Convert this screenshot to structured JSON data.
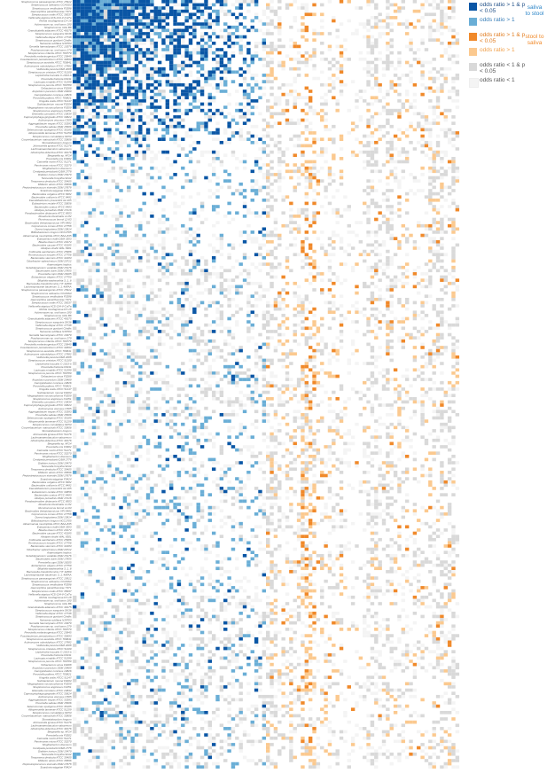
{
  "chart_data": {
    "type": "heatmap",
    "title": "",
    "xlabel": "",
    "ylabel": "",
    "n_rows": 240,
    "n_cols": 100,
    "saliva_to_stool_cols": [
      0,
      50
    ],
    "stool_to_saliva_cols": [
      50,
      100
    ],
    "legend": [
      {
        "key": "s2s_sig",
        "label": "odds ratio > 1 & p < 0.05",
        "color": "#0a56a5"
      },
      {
        "key": "s2s_or",
        "label": "odds ratio > 1",
        "color": "#6aaed6"
      },
      {
        "key": "t2s_sig",
        "label": "odds ratio > 1 & p < 0.05",
        "color": "#f0892a"
      },
      {
        "key": "t2s_or",
        "label": "odds ratio > 1",
        "color": "#fbc98f"
      },
      {
        "key": "lt_sig",
        "label": "odds ratio < 1 & p < 0.05",
        "color": "#d9d9d9"
      },
      {
        "key": "lt",
        "label": "odds ratio < 1",
        "color": "#f4f4f4"
      }
    ],
    "groups": [
      {
        "label": "saliva to stool",
        "color": "#2e86c8"
      },
      {
        "label": "stool to saliva",
        "color": "#f0892a"
      }
    ],
    "row_labels": [
      "Streptococcus parasanguinis ATCC 15912",
      "Streptococcus salivarius CCHSS3",
      "Streptococcus vestibularis F0396",
      "Haemophilus parainfluenzae T3T1",
      "Streptococcus oralis ATCC 35037",
      "Veillonella atypica ACS-134-V-Col7a",
      "Rothia mucilaginosa DY-18",
      "Actinomyces sp. oral taxon 180",
      "Streptococcus mitis B6",
      "Granulicatella adiacens ATCC 49175",
      "Streptococcus sanguinis SK36",
      "Veillonella dispar ATCC 17748",
      "Streptococcus gordonii Challis",
      "Neisseria subflava NJ9703",
      "Gemella haemolysans ATCC 10379",
      "Porphyromonas sp. oral taxon 279",
      "Streptococcus infantis ATCC 700779",
      "Prevotella melaninogenica ATCC 25845",
      "Fusobacterium periodonticum ATCC 33693",
      "Streptococcus australis ATCC 700641",
      "Actinomyces odontolyticus ATCC 17982",
      "Veillonella parvula DSM 2008",
      "Streptococcus cristatus ATCC 51100",
      "Leptotrichia buccalis C-1013-b",
      "Prevotella histicola F0411",
      "Lautropia mirabilis ATCC 51599",
      "Streptococcus peroris ATCC 700780",
      "Oribacterium sinus F0268",
      "Atopobium parvulum DSM 20469",
      "Campylobacter concisus 13826",
      "Prevotella pallens ATCC 700821",
      "Kingella oralis ATCC 51147",
      "Solobacterium moorei F0204",
      "Megasphaera micronuciformis F0359",
      "Streptococcus anginosus C1051",
      "Eikenella corrodens ATCC 23834",
      "Capnocytophaga gingivalis ATCC 33624",
      "Actinomyces viscosus C505",
      "Aggregatibacter segnis ATCC 33393",
      "Prevotella salivae DSM 15606",
      "Selenomonas sputigena ATCC 35185",
      "Alloprevotella tannerae ATCC 51259",
      "Streptococcus constellatus SK53",
      "Corynebacterium matruchotii ATCC 33806",
      "Stomatobaculum longum",
      "Johnsonella ignava ATCC 51276",
      "Lachnoanaerobaculum saburreum",
      "Abiotrophia defectiva ATCC 49176",
      "Bergeyella sp. AF14",
      "Prevotella oris F0302",
      "Catonella morbi ATCC 51271",
      "Parvimonas micra ATCC 33270",
      "Mogibacterium diversum",
      "Centipeda periodontii DSM 2778",
      "Dialister invisus DSM 15470",
      "Tannerella forsythia 92A2",
      "Treponema denticola ATCC 35405",
      "Filifactor alocis ATCC 35896",
      "Peptostreptococcus stomatis DSM 17678",
      "Scardovia wiggsiae F0424",
      "Bacteroides vulgatus ATCC 8482",
      "Bacteroides uniformis ATCC 8492",
      "Faecalibacterium prausnitzii A2-165",
      "Eubacterium rectale ATCC 33656",
      "Bacteroides ovatus ATCC 8483",
      "Alistipes putredinis DSM 17216",
      "Parabacteroides distasonis ATCC 8503",
      "Roseburia intestinalis L1-82",
      "Ruminococcus bromii L2-63",
      "Bacteroides thetaiotaomicron VPI-5482",
      "Coprococcus comes ATCC 27758",
      "Dorea longicatena DSM 13814",
      "Bifidobacterium longum NCC2705",
      "Akkermansia muciniphila ATCC BAA-835",
      "Eubacterium hallii DSM 3353",
      "Blautia obeum ATCC 29174",
      "Bacteroides caccae ATCC 43185",
      "Alistipes shahii WAL 8301",
      "Collinsella aerofaciens ATCC 25986",
      "Ruminococcus torques ATCC 27756",
      "Bacteroides stercoris ATCC 43183",
      "Odoribacter splanchnicus DSM 20712",
      "Anaerostipes hadrus",
      "Subdoligranulum variabile DSM 15176",
      "Bacteroides dorei DSM 17855",
      "Prevotella copri DSM 18205",
      "Eubacterium eligens ATCC 27750",
      "Bilophila wadsworthia 3_1_6",
      "Barnesiella intestinihominis YIT 11860",
      "Lachnospiraceae bacterium 3_1_46FAA",
      "Streptococcus parasanguinis ATCC 15912",
      "Streptococcus salivarius CCHSS3",
      "Streptococcus vestibularis F0396",
      "Haemophilus parainfluenzae T3T1",
      "Streptococcus oralis ATCC 35037",
      "Veillonella atypica ACS-134-V-Col7a",
      "Rothia mucilaginosa DY-18",
      "Actinomyces sp. oral taxon 180",
      "Streptococcus mitis B6",
      "Granulicatella adiacens ATCC 49175",
      "Streptococcus sanguinis SK36",
      "Veillonella dispar ATCC 17748",
      "Streptococcus gordonii Challis",
      "Neisseria subflava NJ9703",
      "Gemella haemolysans ATCC 10379",
      "Porphyromonas sp. oral taxon 279",
      "Streptococcus infantis ATCC 700779",
      "Prevotella melaninogenica ATCC 25845",
      "Fusobacterium periodonticum ATCC 33693",
      "Streptococcus australis ATCC 700641",
      "Actinomyces odontolyticus ATCC 17982",
      "Veillonella parvula DSM 2008",
      "Streptococcus cristatus ATCC 51100",
      "Leptotrichia buccalis C-1013-b",
      "Prevotella histicola F0411",
      "Lautropia mirabilis ATCC 51599",
      "Streptococcus peroris ATCC 700780",
      "Oribacterium sinus F0268",
      "Atopobium parvulum DSM 20469",
      "Campylobacter concisus 13826",
      "Prevotella pallens ATCC 700821",
      "Kingella oralis ATCC 51147",
      "Solobacterium moorei F0204",
      "Megasphaera micronuciformis F0359",
      "Streptococcus anginosus C1051",
      "Eikenella corrodens ATCC 23834",
      "Capnocytophaga gingivalis ATCC 33624",
      "Actinomyces viscosus C505",
      "Aggregatibacter segnis ATCC 33393",
      "Prevotella salivae DSM 15606",
      "Selenomonas sputigena ATCC 35185",
      "Alloprevotella tannerae ATCC 51259",
      "Streptococcus constellatus SK53",
      "Corynebacterium matruchotii ATCC 33806",
      "Stomatobaculum longum",
      "Johnsonella ignava ATCC 51276",
      "Lachnoanaerobaculum saburreum",
      "Abiotrophia defectiva ATCC 49176",
      "Bergeyella sp. AF14",
      "Prevotella oris F0302",
      "Catonella morbi ATCC 51271",
      "Parvimonas micra ATCC 33270",
      "Mogibacterium diversum",
      "Centipeda periodontii DSM 2778",
      "Dialister invisus DSM 15470",
      "Tannerella forsythia 92A2",
      "Treponema denticola ATCC 35405",
      "Filifactor alocis ATCC 35896",
      "Peptostreptococcus stomatis DSM 17678",
      "Scardovia wiggsiae F0424",
      "Bacteroides vulgatus ATCC 8482",
      "Bacteroides uniformis ATCC 8492",
      "Faecalibacterium prausnitzii A2-165",
      "Eubacterium rectale ATCC 33656",
      "Bacteroides ovatus ATCC 8483",
      "Alistipes putredinis DSM 17216",
      "Parabacteroides distasonis ATCC 8503",
      "Roseburia intestinalis L1-82",
      "Ruminococcus bromii L2-63",
      "Bacteroides thetaiotaomicron VPI-5482",
      "Coprococcus comes ATCC 27758",
      "Dorea longicatena DSM 13814",
      "Bifidobacterium longum NCC2705",
      "Akkermansia muciniphila ATCC BAA-835",
      "Eubacterium hallii DSM 3353",
      "Blautia obeum ATCC 29174",
      "Bacteroides caccae ATCC 43185",
      "Alistipes shahii WAL 8301",
      "Collinsella aerofaciens ATCC 25986",
      "Ruminococcus torques ATCC 27756",
      "Bacteroides stercoris ATCC 43183",
      "Odoribacter splanchnicus DSM 20712",
      "Anaerostipes hadrus",
      "Subdoligranulum variabile DSM 15176",
      "Bacteroides dorei DSM 17855",
      "Prevotella copri DSM 18205",
      "Eubacterium eligens ATCC 27750",
      "Bilophila wadsworthia 3_1_6",
      "Barnesiella intestinihominis YIT 11860",
      "Lachnospiraceae bacterium 3_1_46FAA",
      "Streptococcus parasanguinis ATCC 15912",
      "Streptococcus salivarius CCHSS3",
      "Streptococcus vestibularis F0396",
      "Haemophilus parainfluenzae T3T1",
      "Streptococcus oralis ATCC 35037",
      "Veillonella atypica ACS-134-V-Col7a",
      "Rothia mucilaginosa DY-18",
      "Actinomyces sp. oral taxon 180",
      "Streptococcus mitis B6",
      "Granulicatella adiacens ATCC 49175",
      "Streptococcus sanguinis SK36",
      "Veillonella dispar ATCC 17748",
      "Streptococcus gordonii Challis",
      "Neisseria subflava NJ9703",
      "Gemella haemolysans ATCC 10379",
      "Porphyromonas sp. oral taxon 279",
      "Streptococcus infantis ATCC 700779",
      "Prevotella melaninogenica ATCC 25845",
      "Fusobacterium periodonticum ATCC 33693",
      "Streptococcus australis ATCC 700641",
      "Actinomyces odontolyticus ATCC 17982",
      "Veillonella parvula DSM 2008",
      "Streptococcus cristatus ATCC 51100",
      "Leptotrichia buccalis C-1013-b",
      "Prevotella histicola F0411",
      "Lautropia mirabilis ATCC 51599",
      "Streptococcus peroris ATCC 700780",
      "Oribacterium sinus F0268",
      "Atopobium parvulum DSM 20469",
      "Campylobacter concisus 13826",
      "Prevotella pallens ATCC 700821",
      "Kingella oralis ATCC 51147",
      "Solobacterium moorei F0204",
      "Megasphaera micronuciformis F0359",
      "Streptococcus anginosus C1051",
      "Eikenella corrodens ATCC 23834",
      "Capnocytophaga gingivalis ATCC 33624",
      "Actinomyces viscosus C505",
      "Aggregatibacter segnis ATCC 33393",
      "Prevotella salivae DSM 15606",
      "Selenomonas sputigena ATCC 35185",
      "Alloprevotella tannerae ATCC 51259",
      "Streptococcus constellatus SK53",
      "Corynebacterium matruchotii ATCC 33806",
      "Stomatobaculum longum",
      "Johnsonella ignava ATCC 51276",
      "Lachnoanaerobaculum saburreum",
      "Abiotrophia defectiva ATCC 49176",
      "Bergeyella sp. AF14",
      "Prevotella oris F0302",
      "Catonella morbi ATCC 51271",
      "Parvimonas micra ATCC 33270",
      "Mogibacterium diversum",
      "Centipeda periodontii DSM 2778",
      "Dialister invisus DSM 15470",
      "Tannerella forsythia 92A2",
      "Treponema denticola ATCC 35405",
      "Filifactor alocis ATCC 35896",
      "Peptostreptococcus stomatis DSM 17678",
      "Scardovia wiggsiae F0424"
    ]
  }
}
